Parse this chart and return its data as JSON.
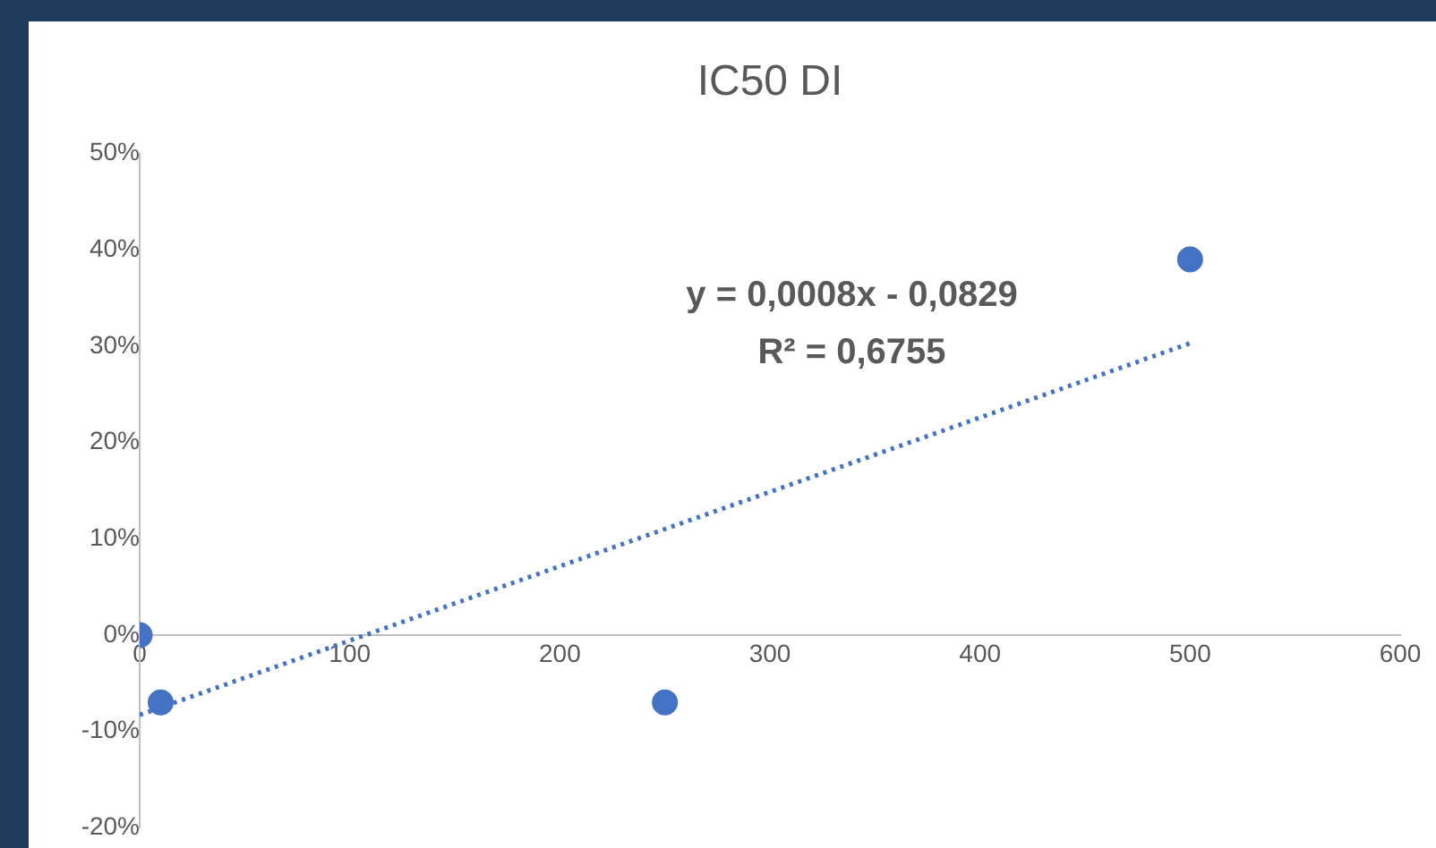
{
  "chart_data": {
    "type": "scatter",
    "title": "IC50 DI",
    "series": [
      {
        "type": "scatter",
        "color": "#4472c4",
        "marker": "circle",
        "x": [
          0,
          10,
          250,
          500
        ],
        "values": [
          0,
          -0.07,
          -0.07,
          0.39
        ]
      },
      {
        "type": "line",
        "color": "#4472c4",
        "marker": "none",
        "line_style": "dotted",
        "x": [
          0,
          500
        ],
        "values": [
          -0.083,
          0.303
        ]
      }
    ],
    "xlim": [
      0,
      600
    ],
    "xticks": [
      0,
      100,
      200,
      300,
      400,
      500,
      600
    ],
    "ylim": [
      -0.2,
      0.5
    ],
    "yticks": [
      {
        "value": -0.2,
        "label": "-20%"
      },
      {
        "value": -0.1,
        "label": "-10%"
      },
      {
        "value": 0,
        "label": "0%"
      },
      {
        "value": 0.1,
        "label": "10%"
      },
      {
        "value": 0.2,
        "label": "20%"
      },
      {
        "value": 0.3,
        "label": "30%"
      },
      {
        "value": 0.4,
        "label": "40%"
      },
      {
        "value": 0.5,
        "label": "50%"
      }
    ],
    "annotations": [
      "y = 0,0008x - 0,0829",
      "R² = 0,6755"
    ],
    "grid": false,
    "legend": false
  }
}
